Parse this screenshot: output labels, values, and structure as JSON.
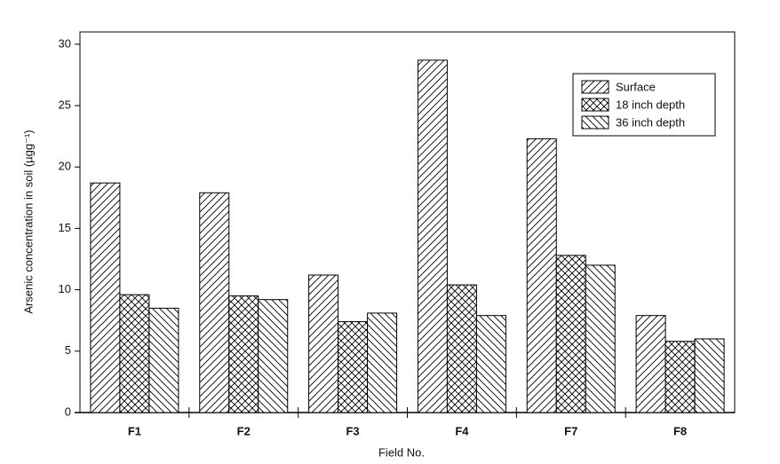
{
  "chart_data": {
    "type": "bar",
    "x_label": "Field No.",
    "y_label": "Arsenic concentration in soil (µgg⁻¹)",
    "categories": [
      "F1",
      "F2",
      "F3",
      "F4",
      "F7",
      "F8"
    ],
    "series": [
      {
        "name": "Surface",
        "color": "#000000",
        "hatch": "/",
        "values": [
          18.7,
          17.9,
          11.2,
          28.7,
          22.3,
          7.9
        ]
      },
      {
        "name": "18 inch depth",
        "color": "#000000",
        "hatch": "x",
        "values": [
          9.6,
          9.5,
          7.4,
          10.4,
          12.8,
          5.8
        ]
      },
      {
        "name": "36 inch depth",
        "color": "#000000",
        "hatch": "\\",
        "values": [
          8.5,
          9.2,
          8.1,
          7.9,
          12.0,
          6.0
        ]
      }
    ],
    "ylim": [
      0,
      31
    ],
    "yticks": [
      0,
      5,
      10,
      15,
      20,
      25,
      30
    ],
    "legend": "upper right"
  }
}
